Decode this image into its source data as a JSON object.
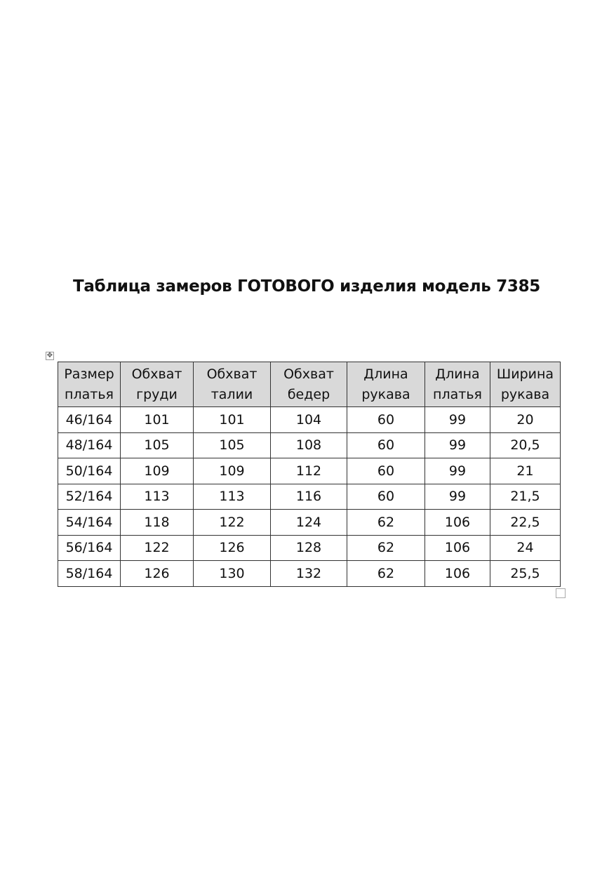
{
  "title": "Таблица замеров ГОТОВОГО изделия модель 7385",
  "table": {
    "headers": [
      [
        "Размер",
        "платья"
      ],
      [
        "Обхват",
        "груди"
      ],
      [
        "Обхват",
        "талии"
      ],
      [
        "Обхват",
        "бедер"
      ],
      [
        "Длина",
        "рукава"
      ],
      [
        "Длина",
        "платья"
      ],
      [
        "Ширина",
        "рукава"
      ]
    ],
    "rows": [
      [
        "46/164",
        "101",
        "101",
        "104",
        "60",
        "99",
        "20"
      ],
      [
        "48/164",
        "105",
        "105",
        "108",
        "60",
        "99",
        "20,5"
      ],
      [
        "50/164",
        "109",
        "109",
        "112",
        "60",
        "99",
        "21"
      ],
      [
        "52/164",
        "113",
        "113",
        "116",
        "60",
        "99",
        "21,5"
      ],
      [
        "54/164",
        "118",
        "122",
        "124",
        "62",
        "106",
        "22,5"
      ],
      [
        "56/164",
        "122",
        "126",
        "128",
        "62",
        "106",
        "24"
      ],
      [
        "58/164",
        "126",
        "130",
        "132",
        "62",
        "106",
        "25,5"
      ]
    ]
  },
  "colors": {
    "header_background": "#d9d9d9",
    "border": "#333333"
  },
  "icons": {
    "move_handle": "move-arrows-icon",
    "resize_handle": "resize-square-icon"
  }
}
